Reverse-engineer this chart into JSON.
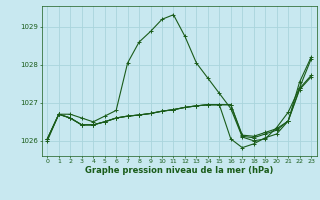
{
  "bg_color": "#c8e8f0",
  "grid_color": "#aad4dc",
  "line_color": "#1a5c1a",
  "xlabel": "Graphe pression niveau de la mer (hPa)",
  "xlabel_color": "#1a5c1a",
  "ylim": [
    1025.6,
    1029.55
  ],
  "yticks": [
    1026,
    1027,
    1028,
    1029
  ],
  "xticks": [
    0,
    1,
    2,
    3,
    4,
    5,
    6,
    7,
    8,
    9,
    10,
    11,
    12,
    13,
    14,
    15,
    16,
    17,
    18,
    19,
    20,
    21,
    22,
    23
  ],
  "series": [
    [
      1026.0,
      1026.7,
      1026.7,
      1026.6,
      1026.5,
      1026.65,
      1026.8,
      1028.05,
      1028.6,
      1028.88,
      1029.2,
      1029.32,
      1028.75,
      1028.05,
      1027.65,
      1027.25,
      1026.85,
      1026.1,
      1026.0,
      1026.05,
      1026.35,
      1026.75,
      1027.4,
      1028.15
    ],
    [
      1026.05,
      1026.7,
      1026.6,
      1026.42,
      1026.42,
      1026.5,
      1026.6,
      1026.65,
      1026.68,
      1026.72,
      1026.78,
      1026.82,
      1026.88,
      1026.92,
      1026.95,
      1026.95,
      1026.95,
      1026.15,
      1026.12,
      1026.22,
      1026.32,
      1026.52,
      1027.55,
      1028.2
    ],
    [
      1026.05,
      1026.7,
      1026.6,
      1026.42,
      1026.42,
      1026.5,
      1026.6,
      1026.65,
      1026.68,
      1026.72,
      1026.78,
      1026.82,
      1026.88,
      1026.92,
      1026.95,
      1026.95,
      1026.05,
      1025.82,
      1025.92,
      1026.08,
      1026.18,
      1026.52,
      1027.38,
      1027.72
    ],
    [
      1026.05,
      1026.7,
      1026.6,
      1026.42,
      1026.42,
      1026.5,
      1026.6,
      1026.65,
      1026.68,
      1026.72,
      1026.78,
      1026.82,
      1026.88,
      1026.92,
      1026.95,
      1026.95,
      1026.95,
      1026.12,
      1026.08,
      1026.18,
      1026.28,
      1026.52,
      1027.35,
      1027.68
    ]
  ]
}
